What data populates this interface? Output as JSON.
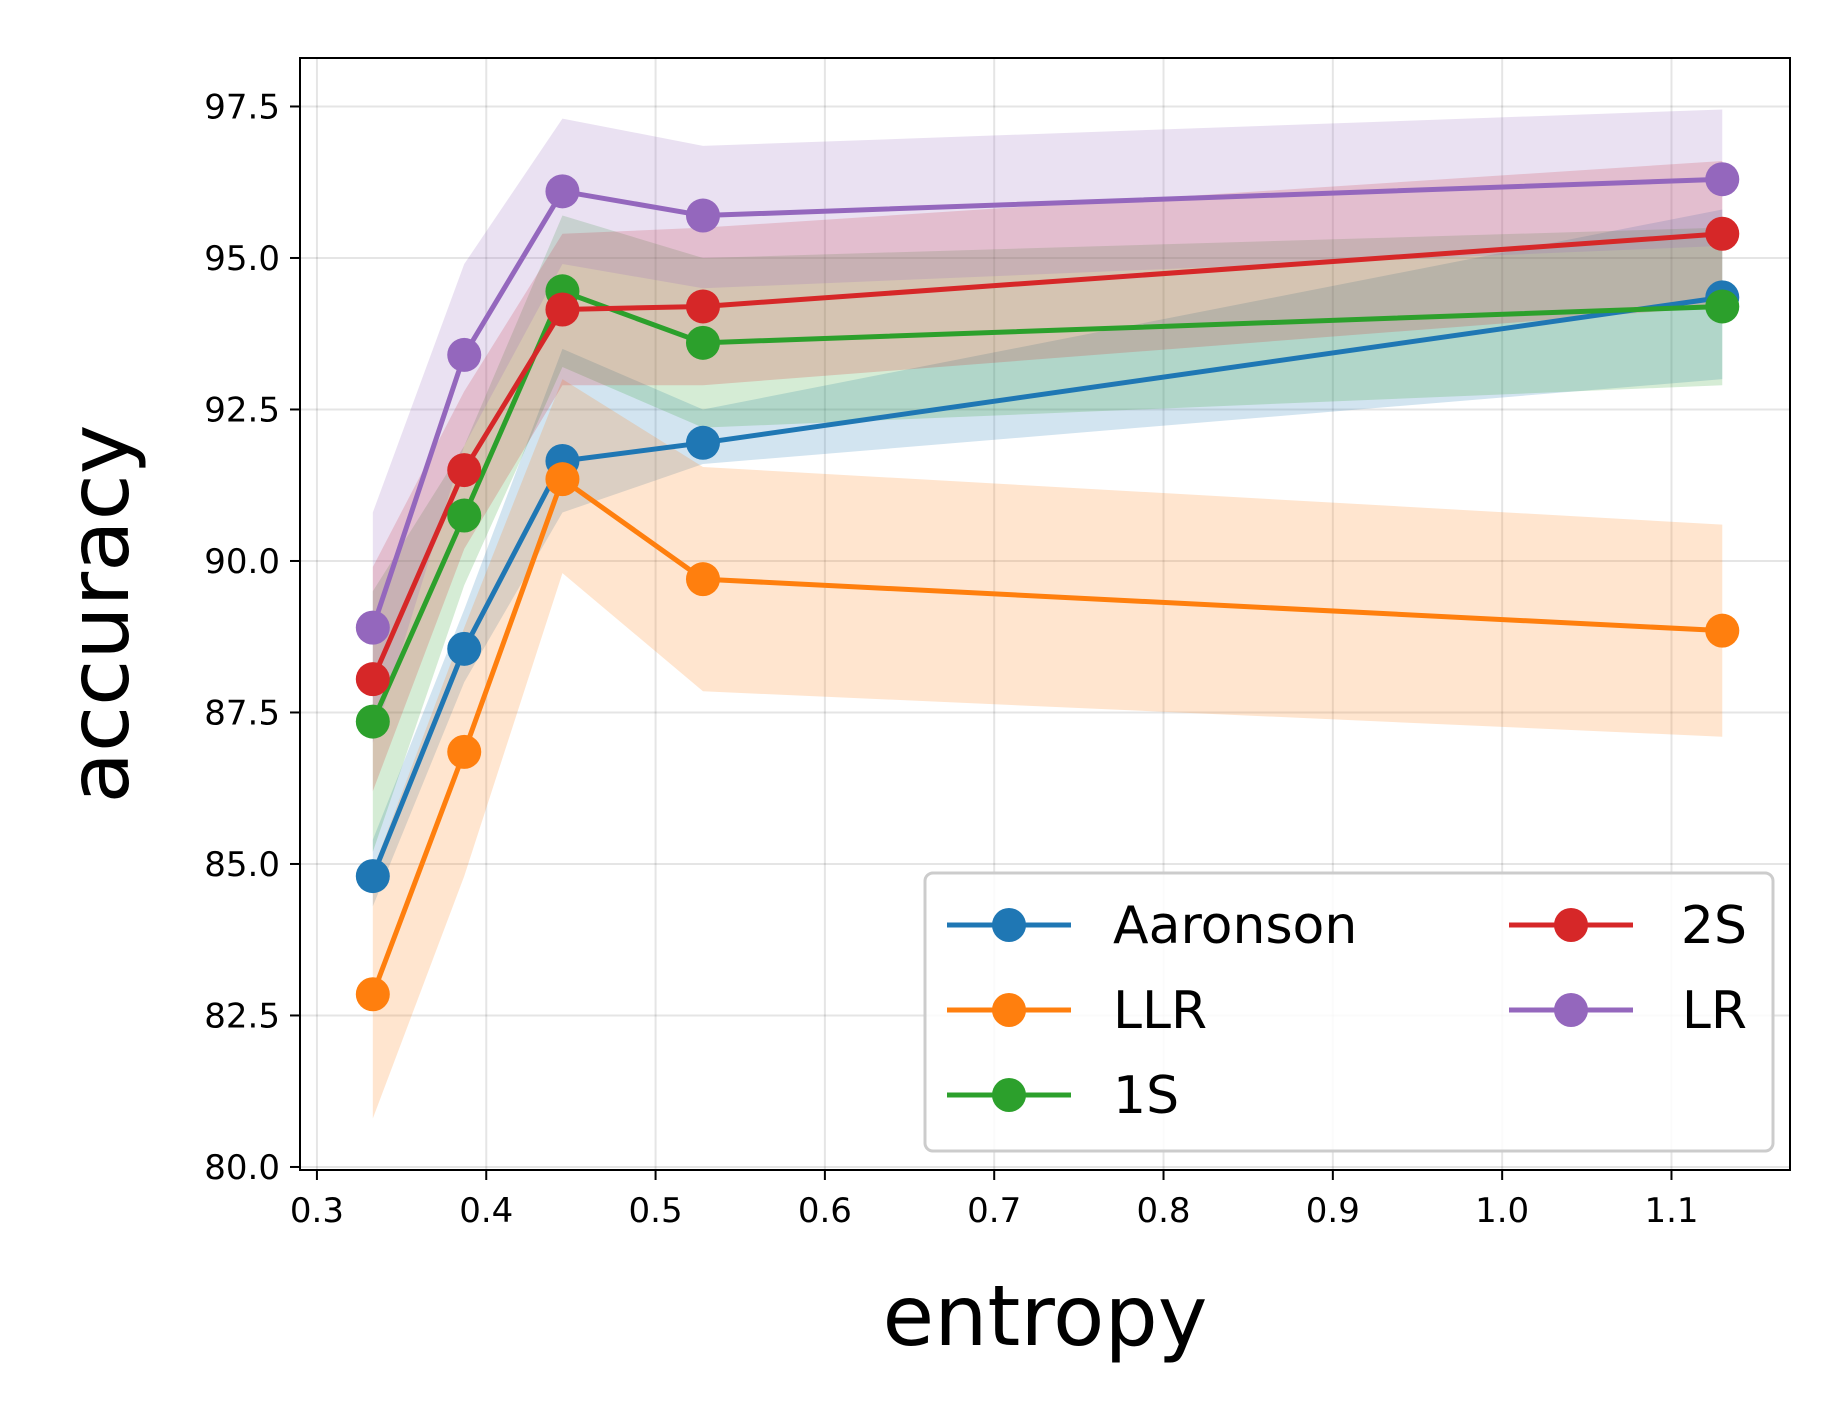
{
  "chart_data": {
    "type": "line",
    "title": "",
    "xlabel": "entropy",
    "ylabel": "accuracy",
    "xlim": [
      0.29,
      1.17
    ],
    "ylim": [
      79.95,
      98.3
    ],
    "xticks": [
      0.3,
      0.4,
      0.5,
      0.6,
      0.7,
      0.8,
      0.9,
      1.0,
      1.1
    ],
    "xtick_labels": [
      "0.3",
      "0.4",
      "0.5",
      "0.6",
      "0.7",
      "0.8",
      "0.9",
      "1.0",
      "1.1"
    ],
    "yticks": [
      80.0,
      82.5,
      85.0,
      87.5,
      90.0,
      92.5,
      95.0,
      97.5
    ],
    "ytick_labels": [
      "80.0",
      "82.5",
      "85.0",
      "87.5",
      "90.0",
      "92.5",
      "95.0",
      "97.5"
    ],
    "grid": true,
    "legend": {
      "placement": "lower-right",
      "columns": 2
    },
    "x": [
      0.333,
      0.387,
      0.445,
      0.528,
      1.13
    ],
    "series": [
      {
        "name": "Aaronson",
        "color": "#1f77b4",
        "values": [
          84.8,
          88.55,
          91.65,
          91.95,
          94.35
        ],
        "lower": [
          84.3,
          88.0,
          90.8,
          91.6,
          93.0
        ],
        "upper": [
          85.4,
          89.2,
          93.5,
          92.5,
          95.8
        ]
      },
      {
        "name": "LLR",
        "color": "#ff7f0e",
        "values": [
          82.85,
          86.85,
          91.35,
          89.7,
          88.85
        ],
        "lower": [
          80.8,
          84.8,
          89.8,
          87.85,
          87.1
        ],
        "upper": [
          84.9,
          88.9,
          93.0,
          91.55,
          90.6
        ]
      },
      {
        "name": "1S",
        "color": "#2ca02c",
        "values": [
          87.35,
          90.75,
          94.45,
          93.6,
          94.2
        ],
        "lower": [
          85.2,
          89.6,
          93.2,
          92.2,
          92.9
        ],
        "upper": [
          89.5,
          91.9,
          95.7,
          95.0,
          95.5
        ]
      },
      {
        "name": "2S",
        "color": "#d62728",
        "values": [
          88.05,
          91.5,
          94.15,
          94.2,
          95.4
        ],
        "lower": [
          86.2,
          90.2,
          92.9,
          92.9,
          94.2
        ],
        "upper": [
          89.9,
          92.8,
          95.4,
          95.5,
          96.6
        ]
      },
      {
        "name": "LR",
        "color": "#9467bd",
        "values": [
          88.9,
          93.4,
          96.1,
          95.7,
          96.3
        ],
        "lower": [
          87.0,
          91.9,
          94.9,
          94.5,
          95.2
        ],
        "upper": [
          90.8,
          94.9,
          97.3,
          96.85,
          97.45
        ]
      }
    ]
  }
}
